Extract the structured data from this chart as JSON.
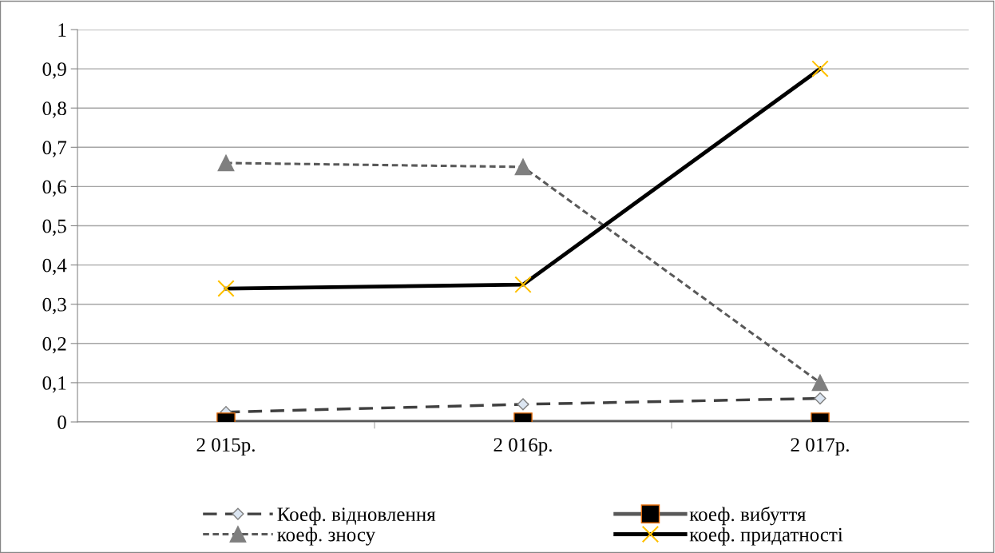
{
  "chart_data": {
    "type": "line",
    "categories": [
      "2 015р.",
      "2 016р.",
      "2 017р."
    ],
    "series": [
      {
        "name": "Коеф. відновлення",
        "color": "#404040",
        "values": [
          0.025,
          0.045,
          0.06
        ],
        "marker": "diamond",
        "line_style": "dashed"
      },
      {
        "name": "коеф. вибуття",
        "color": "#595959",
        "values": [
          0,
          0,
          0
        ],
        "marker": "square",
        "line_style": "solid"
      },
      {
        "name": "коеф. зносу",
        "color": "#595959",
        "values": [
          0.66,
          0.65,
          0.1
        ],
        "marker": "triangle",
        "line_style": "dotted"
      },
      {
        "name": "коеф. придатності",
        "color": "#000000",
        "values": [
          0.34,
          0.35,
          0.9
        ],
        "marker": "cross",
        "line_style": "solid"
      }
    ],
    "ylim": [
      0,
      1
    ],
    "yticks": [
      0,
      {
        "value": 0.1,
        "label": "0,1"
      },
      {
        "value": 0.2,
        "label": "0,2"
      },
      {
        "value": 0.3,
        "label": "0,3"
      },
      {
        "value": 0.4,
        "label": "0,4"
      },
      {
        "value": 0.5,
        "label": "0,5"
      },
      {
        "value": 0.6,
        "label": "0,6"
      },
      {
        "value": 0.7,
        "label": "0,7"
      },
      {
        "value": 0.8,
        "label": "0,8"
      },
      {
        "value": 0.9,
        "label": "0,9"
      },
      1
    ],
    "grid": "y",
    "legend": "bottom"
  }
}
